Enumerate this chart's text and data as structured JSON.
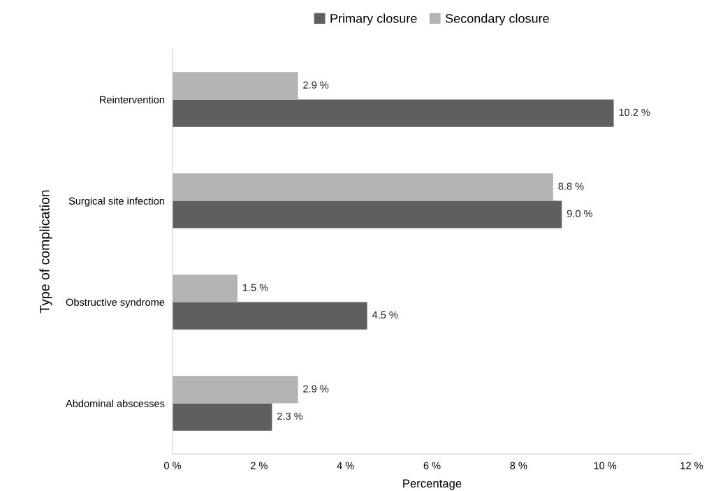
{
  "chart_data": {
    "type": "bar",
    "orientation": "horizontal",
    "xlabel": "Percentage",
    "ylabel": "Type of complication",
    "categories": [
      "Reintervention",
      "Surgical site infection",
      "Obstructive syndrome",
      "Abdominal abscesses"
    ],
    "series": [
      {
        "name": "Primary closure",
        "color": "#5f5f5f",
        "values": [
          10.2,
          9.0,
          4.5,
          2.3
        ],
        "value_labels": [
          "10.2 %",
          "9.0 %",
          "4.5 %",
          "2.3 %"
        ]
      },
      {
        "name": "Secondary closure",
        "color": "#b3b3b3",
        "values": [
          2.9,
          8.8,
          1.5,
          2.9
        ],
        "value_labels": [
          "2.9 %",
          "8.8 %",
          "1.5 %",
          "2.9 %"
        ]
      }
    ],
    "xlim": [
      0,
      12
    ],
    "xticks": [
      {
        "value": 0,
        "label": "0 %"
      },
      {
        "value": 2,
        "label": "2 %"
      },
      {
        "value": 4,
        "label": "4 %"
      },
      {
        "value": 6,
        "label": "6 %"
      },
      {
        "value": 8,
        "label": "8 %"
      },
      {
        "value": 10,
        "label": "10 %"
      },
      {
        "value": 12,
        "label": "12 %"
      }
    ],
    "grid": false,
    "legend": "top"
  }
}
